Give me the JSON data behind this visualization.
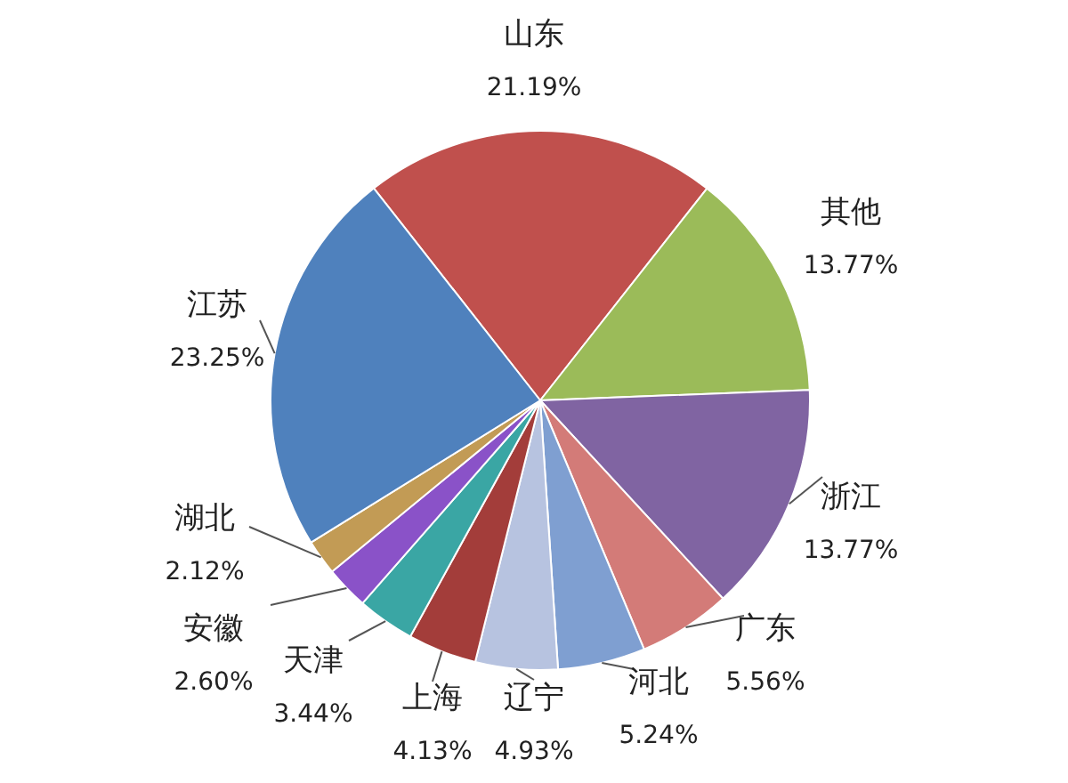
{
  "chart_data": {
    "type": "pie",
    "categories": [
      "山东",
      "其他",
      "浙江",
      "广东",
      "河北",
      "辽宁",
      "上海",
      "天津",
      "安徽",
      "湖北",
      "江苏"
    ],
    "values": [
      21.19,
      13.77,
      13.77,
      5.56,
      5.24,
      4.93,
      4.13,
      3.44,
      2.6,
      2.12,
      23.25
    ],
    "value_labels": [
      "21.19%",
      "13.77%",
      "13.77%",
      "5.56%",
      "5.24%",
      "4.93%",
      "4.13%",
      "3.44%",
      "2.60%",
      "2.12%",
      "23.25%"
    ],
    "colors": [
      "#c0504d",
      "#9bbb59",
      "#8064a2",
      "#d37b78",
      "#7f9fd1",
      "#b7c3e0",
      "#a33d3a",
      "#3aa6a4",
      "#8a52c8",
      "#c29b55",
      "#4f81bd"
    ],
    "legend": false
  }
}
